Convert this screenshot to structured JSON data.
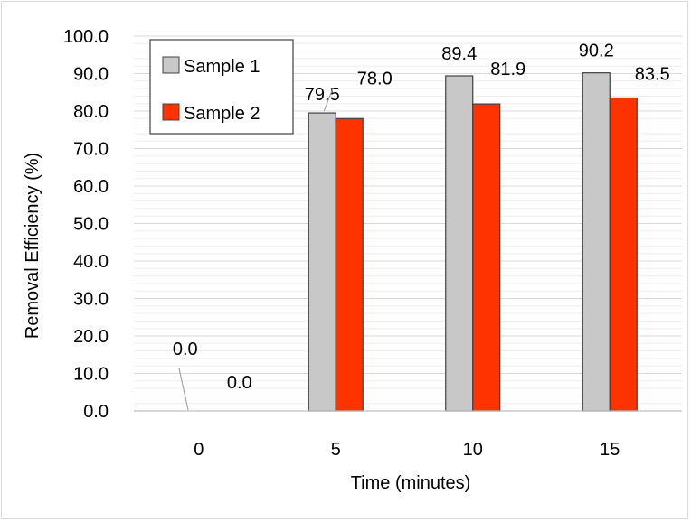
{
  "chart_data": {
    "type": "bar",
    "categories": [
      "0",
      "5",
      "10",
      "15"
    ],
    "series": [
      {
        "name": "Sample 1",
        "values": [
          0.0,
          79.5,
          89.4,
          90.2
        ],
        "labels": [
          "0.0",
          "79.5",
          "89.4",
          "90.2"
        ],
        "color": "#c8c8c8"
      },
      {
        "name": "Sample 2",
        "values": [
          0.0,
          78.0,
          81.9,
          83.5
        ],
        "labels": [
          "0.0",
          "78.0",
          "81.9",
          "83.5"
        ],
        "color": "#ff3300"
      }
    ],
    "title": "",
    "xlabel": "Time (minutes)",
    "ylabel": "Removal Efficiency (%)",
    "ylim": [
      0,
      100
    ],
    "yticks": [
      "0.0",
      "10.0",
      "20.0",
      "30.0",
      "40.0",
      "50.0",
      "60.0",
      "70.0",
      "80.0",
      "90.0",
      "100.0"
    ],
    "grid": true,
    "legend_position": "top-left"
  }
}
